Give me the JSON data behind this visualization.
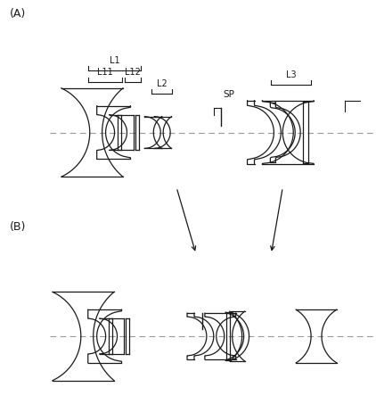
{
  "bg_color": "#ffffff",
  "line_color": "#1a1a1a",
  "dash_color": "#999999",
  "label_A": "(A)",
  "label_B": "(B)",
  "label_L1": "L1",
  "label_L11": "L11",
  "label_L12": "L12",
  "label_L2": "L2",
  "label_L3": "L3",
  "label_SP": "SP",
  "figsize": [
    4.22,
    4.62
  ],
  "dpi": 100
}
